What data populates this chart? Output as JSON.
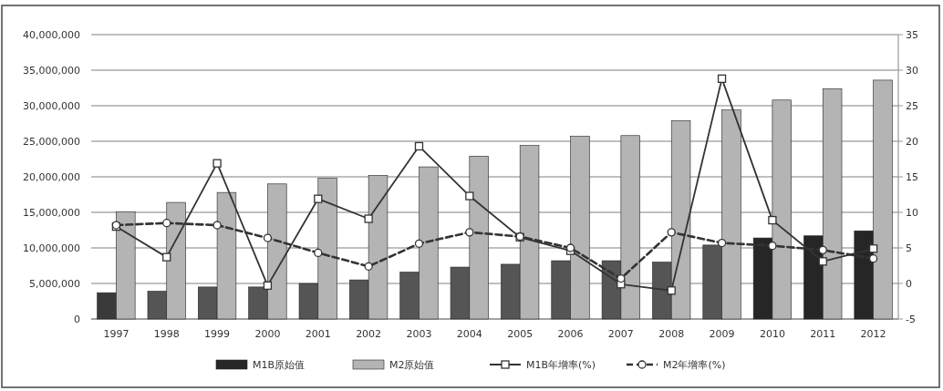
{
  "chart_data": {
    "type": "bar",
    "categories": [
      "1997",
      "1998",
      "1999",
      "2000",
      "2001",
      "2002",
      "2003",
      "2004",
      "2005",
      "2006",
      "2007",
      "2008",
      "2009",
      "2010",
      "2011",
      "2012"
    ],
    "series": [
      {
        "name": "M1B原始值",
        "colors": [
          "#3a3a3a",
          "#555555",
          "#555555",
          "#555555",
          "#555555",
          "#555555",
          "#555555",
          "#555555",
          "#555555",
          "#555555",
          "#555555",
          "#555555",
          "#555555",
          "#262626",
          "#262626",
          "#262626"
        ],
        "values": [
          3700000,
          3900000,
          4500000,
          4500000,
          5000000,
          5500000,
          6600000,
          7300000,
          7700000,
          8200000,
          8200000,
          8000000,
          10400000,
          11400000,
          11700000,
          12400000
        ]
      },
      {
        "name": "M2原始值",
        "color": "#b4b4b4",
        "values": [
          15100000,
          16400000,
          17800000,
          19000000,
          19800000,
          20200000,
          21400000,
          22900000,
          24400000,
          25700000,
          25800000,
          27900000,
          29400000,
          30800000,
          32400000,
          33600000
        ]
      },
      {
        "name": "M1B年增率(%)",
        "type": "line",
        "axis": "y2",
        "color": "#333333",
        "marker": "square",
        "line_style": "solid",
        "values": [
          8.0,
          3.7,
          16.9,
          -0.3,
          11.9,
          9.1,
          19.3,
          12.3,
          6.5,
          4.6,
          -0.1,
          -1.0,
          28.8,
          8.9,
          3.1,
          4.9
        ]
      },
      {
        "name": "M2年增率(%)",
        "type": "line",
        "axis": "y2",
        "color": "#333333",
        "marker": "circle",
        "line_style": "dashed",
        "values": [
          8.2,
          8.5,
          8.2,
          6.4,
          4.3,
          2.4,
          5.6,
          7.2,
          6.6,
          5.0,
          0.7,
          7.2,
          5.7,
          5.3,
          4.7,
          3.5
        ]
      }
    ],
    "ylim": [
      0,
      40000000
    ],
    "yticks": [
      {
        "value": 0,
        "label": "0"
      },
      {
        "value": 5000000,
        "label": "5,000,000"
      },
      {
        "value": 10000000,
        "label": "10,000,000"
      },
      {
        "value": 15000000,
        "label": "15,000,000"
      },
      {
        "value": 20000000,
        "label": "20,000,000"
      },
      {
        "value": 25000000,
        "label": "25,000,000"
      },
      {
        "value": 30000000,
        "label": "30,000,000"
      },
      {
        "value": 35000000,
        "label": "35,000,000"
      },
      {
        "value": 40000000,
        "label": "40,000,000"
      }
    ],
    "y2lim": [
      -5,
      35
    ],
    "y2ticks": [
      -5,
      0,
      5,
      10,
      15,
      20,
      25,
      30,
      35
    ],
    "grid": "y",
    "legend": "bottom"
  }
}
